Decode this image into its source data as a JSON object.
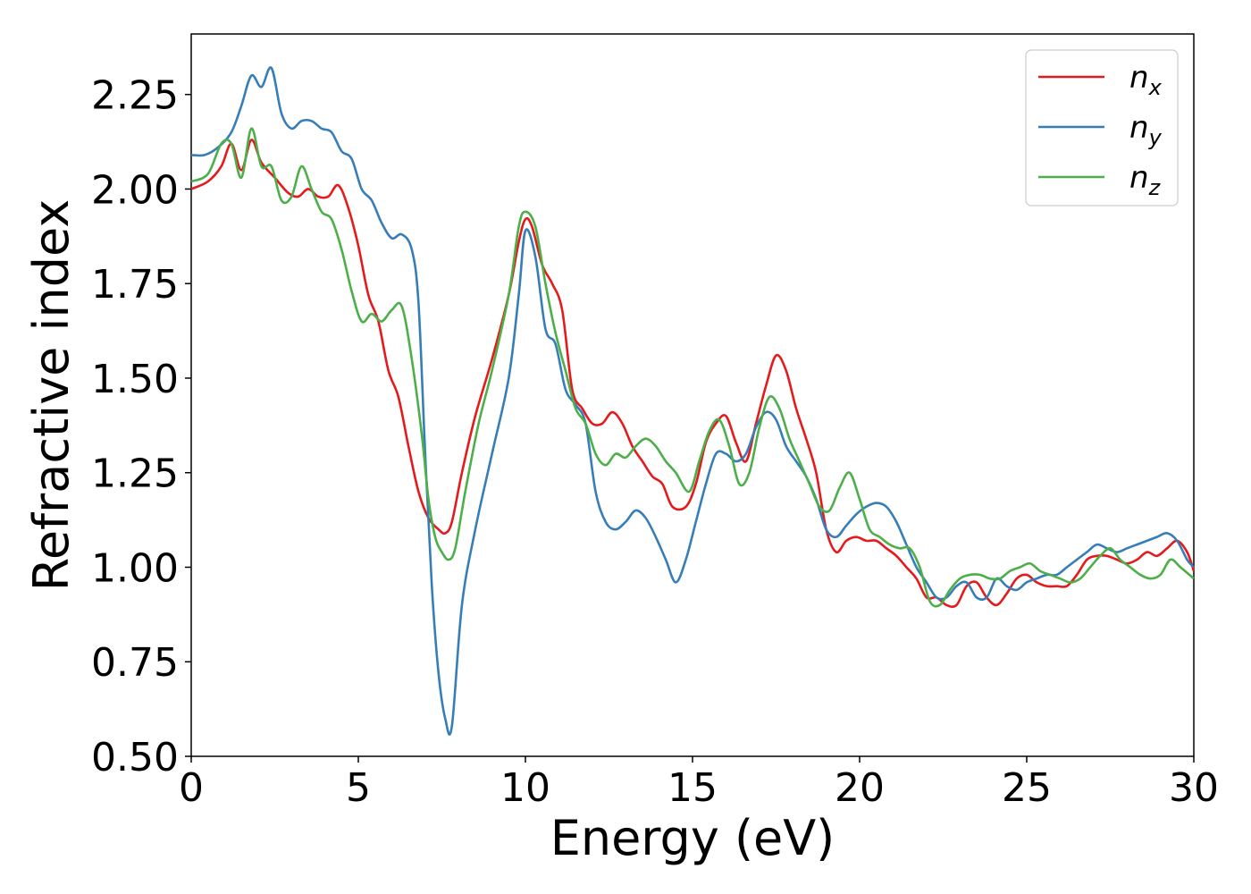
{
  "chart_data": {
    "type": "line",
    "title": "",
    "xlabel": "Energy (eV)",
    "ylabel": "Refractive index",
    "xlim": [
      0,
      30
    ],
    "ylim": [
      0.5,
      2.41
    ],
    "xticks": [
      0,
      5,
      10,
      15,
      20,
      25,
      30
    ],
    "xtick_labels": [
      "0",
      "5",
      "10",
      "15",
      "20",
      "25",
      "30"
    ],
    "yticks": [
      0.5,
      0.75,
      1.0,
      1.25,
      1.5,
      1.75,
      2.0,
      2.25
    ],
    "ytick_labels": [
      "0.50",
      "0.75",
      "1.00",
      "1.25",
      "1.50",
      "1.75",
      "2.00",
      "2.25"
    ],
    "grid": false,
    "legend_position": "top-right",
    "series": [
      {
        "name": "n_x",
        "label_main": "n",
        "label_sub": "x",
        "color": "#e41a1c",
        "x": [
          0,
          0.5,
          0.9,
          1.2,
          1.5,
          1.8,
          2.1,
          2.5,
          2.9,
          3.2,
          3.5,
          3.8,
          4.1,
          4.4,
          4.7,
          5.0,
          5.3,
          5.6,
          5.9,
          6.2,
          6.5,
          6.8,
          7.1,
          7.4,
          7.6,
          7.8,
          8.1,
          8.5,
          9.0,
          9.5,
          9.8,
          10.0,
          10.2,
          10.5,
          10.8,
          11.1,
          11.4,
          11.7,
          12.0,
          12.3,
          12.6,
          12.9,
          13.2,
          13.5,
          13.8,
          14.1,
          14.4,
          14.8,
          15.1,
          15.4,
          15.7,
          16.0,
          16.3,
          16.6,
          16.9,
          17.2,
          17.5,
          17.8,
          18.1,
          18.4,
          18.7,
          19.0,
          19.3,
          19.6,
          19.9,
          20.2,
          20.5,
          20.8,
          21.1,
          21.4,
          21.7,
          22.0,
          22.3,
          22.6,
          22.9,
          23.2,
          23.5,
          23.8,
          24.1,
          24.4,
          24.7,
          25.0,
          25.3,
          25.6,
          25.9,
          26.2,
          26.5,
          26.8,
          27.1,
          27.4,
          27.7,
          28.0,
          28.3,
          28.6,
          28.9,
          29.2,
          29.5,
          29.8,
          30.0
        ],
        "y": [
          2.0,
          2.02,
          2.06,
          2.12,
          2.05,
          2.13,
          2.07,
          2.03,
          1.99,
          1.98,
          2.0,
          1.98,
          1.98,
          2.01,
          1.95,
          1.85,
          1.72,
          1.65,
          1.52,
          1.45,
          1.32,
          1.2,
          1.13,
          1.1,
          1.09,
          1.12,
          1.25,
          1.4,
          1.55,
          1.72,
          1.86,
          1.92,
          1.9,
          1.8,
          1.75,
          1.68,
          1.47,
          1.42,
          1.38,
          1.38,
          1.41,
          1.38,
          1.32,
          1.28,
          1.24,
          1.22,
          1.16,
          1.16,
          1.22,
          1.33,
          1.38,
          1.4,
          1.33,
          1.28,
          1.38,
          1.48,
          1.56,
          1.52,
          1.42,
          1.34,
          1.25,
          1.1,
          1.04,
          1.07,
          1.08,
          1.07,
          1.07,
          1.05,
          1.03,
          1.0,
          0.97,
          0.92,
          0.92,
          0.9,
          0.9,
          0.95,
          0.96,
          0.92,
          0.9,
          0.93,
          0.97,
          0.98,
          0.96,
          0.95,
          0.95,
          0.95,
          0.98,
          1.02,
          1.03,
          1.03,
          1.02,
          1.01,
          1.02,
          1.04,
          1.03,
          1.05,
          1.07,
          1.04,
          0.99
        ]
      },
      {
        "name": "n_y",
        "label_main": "n",
        "label_sub": "y",
        "color": "#377eb8",
        "x": [
          0,
          0.4,
          0.8,
          1.2,
          1.5,
          1.8,
          2.1,
          2.4,
          2.7,
          3.0,
          3.3,
          3.6,
          3.9,
          4.2,
          4.5,
          4.8,
          5.1,
          5.4,
          5.7,
          6.0,
          6.3,
          6.6,
          6.8,
          7.0,
          7.2,
          7.4,
          7.6,
          7.8,
          8.1,
          8.5,
          9.0,
          9.5,
          9.8,
          10.0,
          10.3,
          10.6,
          10.9,
          11.2,
          11.5,
          11.8,
          12.1,
          12.4,
          12.7,
          13.0,
          13.3,
          13.6,
          13.9,
          14.2,
          14.5,
          14.8,
          15.1,
          15.4,
          15.7,
          16.0,
          16.3,
          16.6,
          16.9,
          17.2,
          17.5,
          17.8,
          18.1,
          18.4,
          18.7,
          19.0,
          19.3,
          19.6,
          19.9,
          20.2,
          20.5,
          20.8,
          21.1,
          21.4,
          21.7,
          22.0,
          22.3,
          22.6,
          22.9,
          23.2,
          23.5,
          23.8,
          24.1,
          24.4,
          24.7,
          25.0,
          25.3,
          25.6,
          25.9,
          26.2,
          26.5,
          26.8,
          27.1,
          27.4,
          27.7,
          28.0,
          28.3,
          28.6,
          28.9,
          29.2,
          29.5,
          29.8,
          30.0
        ],
        "y": [
          2.09,
          2.09,
          2.11,
          2.15,
          2.22,
          2.3,
          2.27,
          2.32,
          2.2,
          2.16,
          2.18,
          2.18,
          2.16,
          2.15,
          2.1,
          2.08,
          2.0,
          1.97,
          1.91,
          1.87,
          1.88,
          1.84,
          1.7,
          1.3,
          0.95,
          0.72,
          0.6,
          0.58,
          0.9,
          1.1,
          1.3,
          1.5,
          1.72,
          1.89,
          1.82,
          1.63,
          1.59,
          1.47,
          1.43,
          1.38,
          1.2,
          1.12,
          1.1,
          1.12,
          1.15,
          1.13,
          1.08,
          1.02,
          0.96,
          1.02,
          1.12,
          1.22,
          1.3,
          1.3,
          1.28,
          1.3,
          1.37,
          1.41,
          1.39,
          1.32,
          1.28,
          1.24,
          1.18,
          1.1,
          1.08,
          1.11,
          1.14,
          1.16,
          1.17,
          1.16,
          1.12,
          1.06,
          1.0,
          0.96,
          0.92,
          0.92,
          0.95,
          0.96,
          0.92,
          0.92,
          0.97,
          0.95,
          0.94,
          0.96,
          0.97,
          0.98,
          0.98,
          1.0,
          1.02,
          1.04,
          1.06,
          1.05,
          1.04,
          1.05,
          1.06,
          1.07,
          1.08,
          1.09,
          1.07,
          1.02,
          1.0
        ]
      },
      {
        "name": "n_z",
        "label_main": "n",
        "label_sub": "z",
        "color": "#4daf4a",
        "x": [
          0,
          0.5,
          0.9,
          1.2,
          1.5,
          1.8,
          2.1,
          2.4,
          2.7,
          3.0,
          3.3,
          3.6,
          3.9,
          4.2,
          4.5,
          4.8,
          5.1,
          5.4,
          5.7,
          6.0,
          6.3,
          6.6,
          6.9,
          7.1,
          7.3,
          7.5,
          7.7,
          7.9,
          8.2,
          8.6,
          9.0,
          9.5,
          9.8,
          10.0,
          10.3,
          10.6,
          10.9,
          11.2,
          11.5,
          11.8,
          12.1,
          12.4,
          12.7,
          13.0,
          13.3,
          13.6,
          13.9,
          14.2,
          14.5,
          14.9,
          15.2,
          15.5,
          15.8,
          16.1,
          16.4,
          16.7,
          17.0,
          17.3,
          17.6,
          17.9,
          18.2,
          18.5,
          18.8,
          19.1,
          19.4,
          19.7,
          20.0,
          20.3,
          20.6,
          20.9,
          21.2,
          21.5,
          21.8,
          22.1,
          22.4,
          22.7,
          23.0,
          23.3,
          23.6,
          23.9,
          24.2,
          24.5,
          24.8,
          25.1,
          25.4,
          25.7,
          26.0,
          26.3,
          26.6,
          26.9,
          27.2,
          27.5,
          27.8,
          28.1,
          28.4,
          28.7,
          29.0,
          29.3,
          29.6,
          30.0
        ],
        "y": [
          2.02,
          2.04,
          2.12,
          2.12,
          2.03,
          2.16,
          2.06,
          2.06,
          1.97,
          1.98,
          2.06,
          2.0,
          1.94,
          1.92,
          1.84,
          1.73,
          1.65,
          1.67,
          1.65,
          1.68,
          1.69,
          1.55,
          1.35,
          1.18,
          1.08,
          1.04,
          1.02,
          1.05,
          1.2,
          1.38,
          1.52,
          1.72,
          1.9,
          1.94,
          1.9,
          1.75,
          1.62,
          1.52,
          1.42,
          1.38,
          1.3,
          1.27,
          1.3,
          1.29,
          1.32,
          1.34,
          1.32,
          1.28,
          1.25,
          1.2,
          1.28,
          1.36,
          1.39,
          1.32,
          1.22,
          1.25,
          1.37,
          1.45,
          1.42,
          1.34,
          1.28,
          1.22,
          1.16,
          1.15,
          1.21,
          1.25,
          1.18,
          1.1,
          1.08,
          1.06,
          1.05,
          1.05,
          1.0,
          0.91,
          0.9,
          0.94,
          0.97,
          0.98,
          0.98,
          0.97,
          0.97,
          0.99,
          1.0,
          1.01,
          0.99,
          0.98,
          0.97,
          0.96,
          0.97,
          1.0,
          1.03,
          1.05,
          1.02,
          1.0,
          0.98,
          0.97,
          0.98,
          1.02,
          1.0,
          0.97
        ]
      }
    ]
  }
}
